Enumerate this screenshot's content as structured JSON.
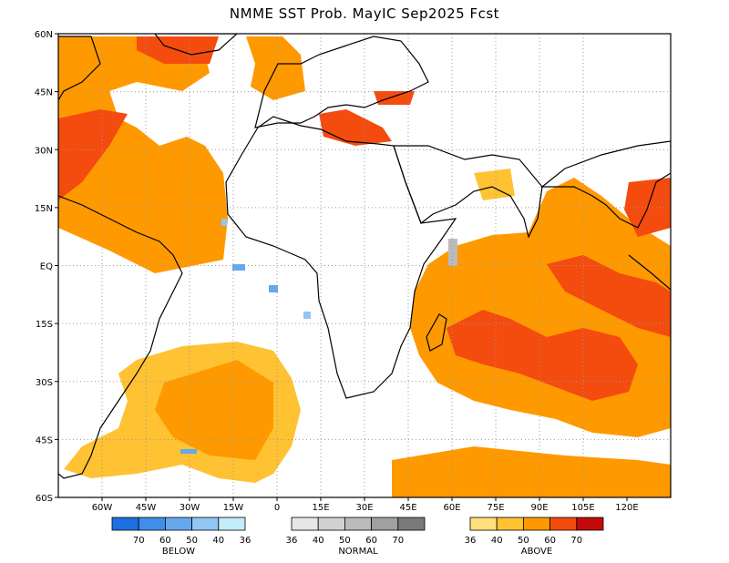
{
  "title": "NMME SST Prob. MayIC  Sep2025 Fcst",
  "lat_ticks": [
    "60N",
    "45N",
    "30N",
    "15N",
    "EQ",
    "15S",
    "30S",
    "45S",
    "60S"
  ],
  "lon_ticks": [
    "60W",
    "45W",
    "30W",
    "15W",
    "0",
    "15E",
    "30E",
    "45E",
    "60E",
    "75E",
    "90E",
    "105E",
    "120E"
  ],
  "legends": [
    {
      "id": "below",
      "title": "BELOW",
      "colors": [
        "#1e6fe0",
        "#3f8fe8",
        "#66a8ee",
        "#92c6f4",
        "#c3ecf8"
      ],
      "labels": [
        "70",
        "60",
        "50",
        "40",
        "36"
      ]
    },
    {
      "id": "normal",
      "title": "NORMAL",
      "colors": [
        "#e6e6e6",
        "#d2d2d2",
        "#bbbbbb",
        "#a0a0a0",
        "#7a7a7a"
      ],
      "labels": [
        "36",
        "40",
        "50",
        "60",
        "70"
      ]
    },
    {
      "id": "above",
      "title": "ABOVE",
      "colors": [
        "#ffe07a",
        "#ffc233",
        "#ff9900",
        "#f44b0f",
        "#c20a0a"
      ],
      "labels": [
        "36",
        "40",
        "50",
        "60",
        "70"
      ]
    }
  ]
}
